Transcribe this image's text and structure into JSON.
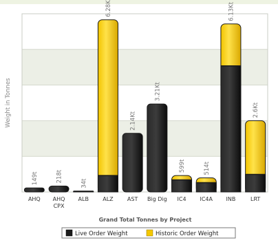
{
  "chart_data": {
    "type": "bar",
    "stacked": true,
    "title": "Grand Total Tonnes by Project",
    "ylabel": "Weight in Tonnes",
    "xlabel": "",
    "categories": [
      "AHQ",
      "AHQ CPX",
      "ALB",
      "ALZ",
      "AST",
      "Big Dig",
      "IC4",
      "IC4A",
      "INB",
      "LRT"
    ],
    "category_lines": [
      [
        "AHQ"
      ],
      [
        "AHQ",
        "CPX"
      ],
      [
        "ALB"
      ],
      [
        "ALZ"
      ],
      [
        "AST"
      ],
      [
        "Big Dig"
      ],
      [
        "IC4"
      ],
      [
        "IC4A"
      ],
      [
        "INB"
      ],
      [
        "LRT"
      ]
    ],
    "ylim": [
      0,
      6500
    ],
    "series": [
      {
        "name": "Live Order Weight",
        "color": "#1a1a1a",
        "values": [
          149,
          218,
          10,
          600,
          2140,
          3210,
          440,
          340,
          4600,
          640
        ]
      },
      {
        "name": "Historic Order Weight",
        "color": "#f5c800",
        "values": [
          0,
          0,
          24,
          5680,
          0,
          0,
          159,
          174,
          1530,
          1960
        ]
      }
    ],
    "total_labels": [
      "149t",
      "218t",
      "34t",
      "6.28Kt",
      "2.14Kt",
      "3.21Kt",
      "599t",
      "514t",
      "6.13Kt",
      "2.6Kt"
    ],
    "grid": true,
    "legend_position": "bottom"
  }
}
